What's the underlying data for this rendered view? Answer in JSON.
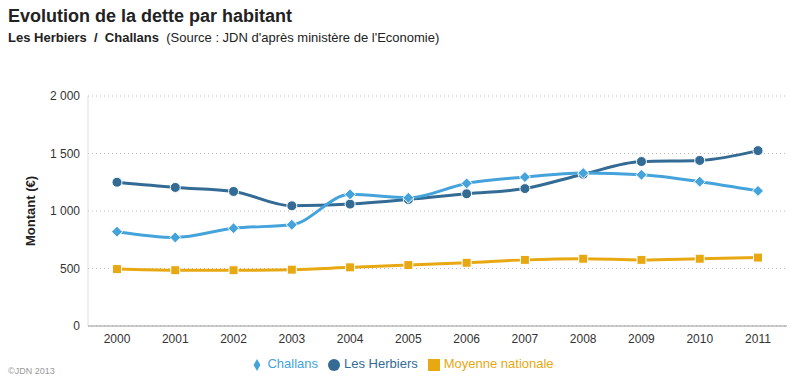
{
  "chart_data": {
    "type": "line",
    "title": "Evolution de la dette par habitant",
    "subtitle": "Les Herbiers  /  Challans",
    "source": "(Source : JDN d'après ministère de l'Economie)",
    "y_label": "Montant (€)",
    "credit": "©JDN 2013",
    "categories": [
      "2000",
      "2001",
      "2002",
      "2003",
      "2004",
      "2005",
      "2006",
      "2007",
      "2008",
      "2009",
      "2010",
      "2011"
    ],
    "series": [
      {
        "name": "Les Herbiers",
        "color": "#336b94",
        "marker": "circle",
        "values": [
          1250,
          1205,
          1170,
          1045,
          1060,
          1100,
          1150,
          1195,
          1320,
          1430,
          1440,
          1525
        ]
      },
      {
        "name": "Challans",
        "color": "#45a3db",
        "marker": "diamond",
        "values": [
          820,
          770,
          850,
          880,
          1145,
          1115,
          1240,
          1295,
          1330,
          1315,
          1255,
          1175
        ]
      },
      {
        "name": "Moyenne nationale",
        "color": "#e8a812",
        "marker": "square",
        "values": [
          495,
          485,
          485,
          490,
          510,
          530,
          550,
          575,
          585,
          575,
          585,
          595
        ]
      }
    ],
    "ylim": [
      0,
      2000
    ],
    "yticks": [
      0,
      500,
      {
        "value": 1000,
        "label": "1 000"
      },
      {
        "value": 1500,
        "label": "1 500"
      },
      {
        "value": 2000,
        "label": "2 000"
      }
    ],
    "grid": true,
    "legend": "bottom",
    "line_style": "smooth"
  }
}
